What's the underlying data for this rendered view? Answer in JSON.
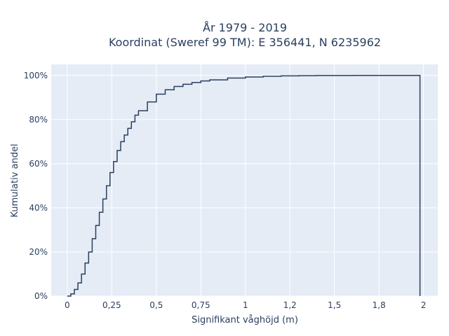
{
  "chart_data": {
    "type": "line",
    "line_shape": "step",
    "title": "År 1979 - 2019",
    "subtitle": "Koordinat (Sweref 99 TM): E 356441, N 6235962",
    "xlabel": "Signifikant våghöjd (m)",
    "ylabel": "Kumulativ andel",
    "xlim": [
      -0.09,
      2.08
    ],
    "ylim": [
      0,
      1.05
    ],
    "x_ticks": [
      0,
      0.25,
      0.5,
      0.75,
      1,
      1.25,
      1.5,
      1.75,
      2
    ],
    "x_tick_labels": [
      "0",
      "0,25",
      "0,5",
      "0,75",
      "1",
      "1,2",
      "1,5",
      "1,8",
      "2"
    ],
    "y_ticks": [
      0,
      0.2,
      0.4,
      0.6,
      0.8,
      1.0
    ],
    "y_tick_labels": [
      "0%",
      "20%",
      "40%",
      "60%",
      "80%",
      "100%"
    ],
    "grid": true,
    "colors": {
      "plot_bg": "#e5ecf6",
      "grid": "#ffffff",
      "line": "#2a3f5f"
    },
    "series": [
      {
        "x": [
          0.0,
          0.02,
          0.04,
          0.06,
          0.08,
          0.1,
          0.12,
          0.14,
          0.16,
          0.18,
          0.2,
          0.22,
          0.24,
          0.26,
          0.28,
          0.3,
          0.32,
          0.34,
          0.36,
          0.38,
          0.4,
          0.45,
          0.5,
          0.55,
          0.6,
          0.65,
          0.7,
          0.75,
          0.8,
          0.9,
          1.0,
          1.1,
          1.2,
          1.3,
          1.4,
          1.5,
          1.6,
          1.8,
          1.98
        ],
        "y": [
          0.0,
          0.01,
          0.03,
          0.06,
          0.1,
          0.15,
          0.2,
          0.26,
          0.32,
          0.38,
          0.44,
          0.5,
          0.56,
          0.61,
          0.66,
          0.7,
          0.73,
          0.76,
          0.79,
          0.82,
          0.84,
          0.88,
          0.915,
          0.935,
          0.95,
          0.96,
          0.968,
          0.975,
          0.98,
          0.988,
          0.993,
          0.996,
          0.998,
          0.999,
          0.9995,
          0.9998,
          0.9999,
          1.0,
          1.0
        ]
      }
    ]
  }
}
